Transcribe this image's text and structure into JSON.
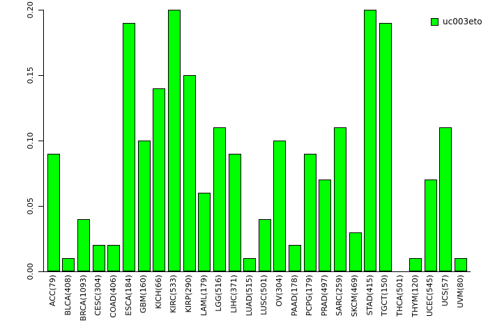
{
  "chart_data": {
    "type": "bar",
    "title": "",
    "xlabel": "",
    "ylabel": "",
    "categories": [
      "ACC(79)",
      "BLCA(408)",
      "BRCA(1093)",
      "CESC(304)",
      "COAD(406)",
      "ESCA(184)",
      "GBM(160)",
      "KICH(66)",
      "KIRC(533)",
      "KIRP(290)",
      "LAML(179)",
      "LGG(516)",
      "LIHC(371)",
      "LUAD(515)",
      "LUSC(501)",
      "OV(304)",
      "PAAD(178)",
      "PCPG(179)",
      "PRAD(497)",
      "SARC(259)",
      "SKCM(469)",
      "STAD(415)",
      "TGCT(150)",
      "THCA(501)",
      "THYM(120)",
      "UCEC(545)",
      "UCS(57)",
      "UVM(80)"
    ],
    "values": [
      0.09,
      0.01,
      0.04,
      0.02,
      0.02,
      0.19,
      0.1,
      0.14,
      0.2,
      0.15,
      0.06,
      0.11,
      0.09,
      0.01,
      0.04,
      0.1,
      0.02,
      0.09,
      0.07,
      0.11,
      0.03,
      0.2,
      0.19,
      0.0,
      0.01,
      0.07,
      0.11,
      0.01
    ],
    "ylim": [
      0,
      0.2
    ],
    "ytick_values": [
      0,
      0.05,
      0.1,
      0.15,
      0.2
    ],
    "ytick_labels": [
      "0.00",
      "0.05",
      "0.10",
      "0.15",
      "0.20"
    ],
    "grid": false,
    "legend_position": "top-right",
    "legend": {
      "label": "uc003eto",
      "color": "#00FF00"
    },
    "bar_color": "#00FF00",
    "bar_border_color": "#000000",
    "axis_color": "#000000",
    "background_color": "#ffffff"
  }
}
